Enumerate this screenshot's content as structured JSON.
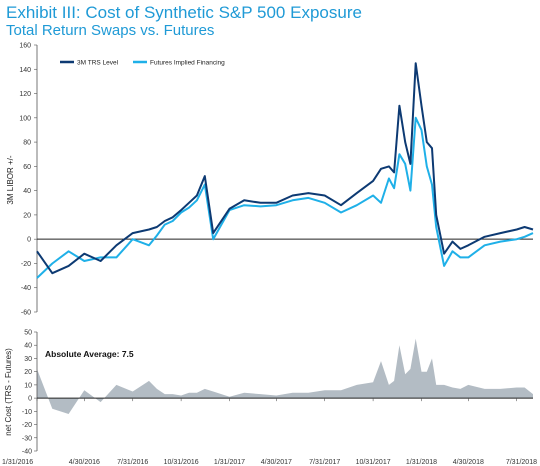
{
  "header": {
    "title": "Exhibit III:  Cost of Synthetic S&P 500 Exposure",
    "subtitle": "Total Return Swaps vs. Futures"
  },
  "colors": {
    "title": "#1f9ad6",
    "trs_series": "#0d3a73",
    "futures_series": "#1fb0e8",
    "spread_area": "#b3bcc4"
  },
  "chart_data": [
    {
      "type": "line",
      "ylabel": "3M LIBOR +/-",
      "ylim": [
        -60,
        160
      ],
      "yticks": [
        -60,
        -40,
        -20,
        0,
        20,
        40,
        60,
        80,
        100,
        120,
        140,
        160
      ],
      "grid": false,
      "legend_position": "top-left",
      "series": [
        {
          "name": "3M TRS Level",
          "color": "#0d3a73",
          "x": [
            "1/31/2016",
            "2/29/2016",
            "3/31/2016",
            "4/30/2016",
            "5/31/2016",
            "6/30/2016",
            "7/31/2016",
            "8/31/2016",
            "9/15/2016",
            "9/30/2016",
            "10/15/2016",
            "10/31/2016",
            "11/15/2016",
            "11/30/2016",
            "12/15/2016",
            "12/31/2016",
            "1/31/2017",
            "2/28/2017",
            "3/31/2017",
            "4/30/2017",
            "5/31/2017",
            "6/30/2017",
            "7/31/2017",
            "8/31/2017",
            "9/30/2017",
            "10/31/2017",
            "11/15/2017",
            "11/30/2017",
            "12/10/2017",
            "12/20/2017",
            "12/31/2017",
            "1/10/2018",
            "1/20/2018",
            "1/31/2018",
            "2/10/2018",
            "2/20/2018",
            "2/28/2018",
            "3/15/2018",
            "3/31/2018",
            "4/15/2018",
            "4/30/2018",
            "5/31/2018",
            "6/30/2018",
            "7/31/2018",
            "8/15/2018",
            "8/31/2018"
          ],
          "values": [
            -10,
            -28,
            -22,
            -12,
            -18,
            -5,
            5,
            8,
            10,
            15,
            18,
            24,
            30,
            36,
            52,
            5,
            25,
            32,
            30,
            30,
            36,
            38,
            36,
            28,
            38,
            48,
            58,
            60,
            55,
            110,
            80,
            62,
            145,
            110,
            80,
            75,
            20,
            -12,
            -2,
            -8,
            -5,
            2,
            5,
            8,
            10,
            8
          ]
        },
        {
          "name": "Futures Implied Financing",
          "color": "#1fb0e8",
          "x": [
            "1/31/2016",
            "2/29/2016",
            "3/31/2016",
            "4/30/2016",
            "5/31/2016",
            "6/30/2016",
            "7/31/2016",
            "8/31/2016",
            "9/15/2016",
            "9/30/2016",
            "10/15/2016",
            "10/31/2016",
            "11/15/2016",
            "11/30/2016",
            "12/15/2016",
            "12/31/2016",
            "1/31/2017",
            "2/28/2017",
            "3/31/2017",
            "4/30/2017",
            "5/31/2017",
            "6/30/2017",
            "7/31/2017",
            "8/31/2017",
            "9/30/2017",
            "10/31/2017",
            "11/15/2017",
            "11/30/2017",
            "12/10/2017",
            "12/20/2017",
            "12/31/2017",
            "1/10/2018",
            "1/20/2018",
            "1/31/2018",
            "2/10/2018",
            "2/20/2018",
            "2/28/2018",
            "3/15/2018",
            "3/31/2018",
            "4/15/2018",
            "4/30/2018",
            "5/31/2018",
            "6/30/2018",
            "7/31/2018",
            "8/15/2018",
            "8/31/2018"
          ],
          "values": [
            -32,
            -20,
            -10,
            -18,
            -15,
            -15,
            0,
            -5,
            3,
            12,
            15,
            22,
            26,
            32,
            45,
            0,
            24,
            28,
            27,
            28,
            32,
            34,
            30,
            22,
            28,
            36,
            30,
            50,
            42,
            70,
            62,
            40,
            100,
            90,
            60,
            45,
            10,
            -22,
            -10,
            -15,
            -15,
            -5,
            -2,
            0,
            2,
            5
          ]
        }
      ]
    },
    {
      "type": "area",
      "ylabel": "net Cost (TRS - Futures)",
      "ylim": [
        -40,
        50
      ],
      "yticks": [
        -40,
        -30,
        -20,
        -10,
        0,
        10,
        20,
        30,
        40,
        50
      ],
      "annotation": "Absolute Average: 7.5",
      "x": [
        "1/31/2016",
        "2/29/2016",
        "3/31/2016",
        "4/30/2016",
        "5/31/2016",
        "6/30/2016",
        "7/31/2016",
        "8/31/2016",
        "9/15/2016",
        "9/30/2016",
        "10/15/2016",
        "10/31/2016",
        "11/15/2016",
        "11/30/2016",
        "12/15/2016",
        "12/31/2016",
        "1/31/2017",
        "2/28/2017",
        "3/31/2017",
        "4/30/2017",
        "5/31/2017",
        "6/30/2017",
        "7/31/2017",
        "8/31/2017",
        "9/30/2017",
        "10/31/2017",
        "11/15/2017",
        "11/30/2017",
        "12/10/2017",
        "12/20/2017",
        "12/31/2017",
        "1/10/2018",
        "1/20/2018",
        "1/31/2018",
        "2/10/2018",
        "2/20/2018",
        "2/28/2018",
        "3/15/2018",
        "3/31/2018",
        "4/15/2018",
        "4/30/2018",
        "5/31/2018",
        "6/30/2018",
        "7/31/2018",
        "8/15/2018",
        "8/31/2018"
      ],
      "series": [
        {
          "color": "#b3bcc4",
          "values": [
            22,
            -8,
            -12,
            6,
            -3,
            10,
            5,
            13,
            7,
            3,
            3,
            2,
            4,
            4,
            7,
            5,
            1,
            4,
            3,
            2,
            4,
            4,
            6,
            6,
            10,
            12,
            28,
            10,
            13,
            40,
            18,
            22,
            45,
            20,
            20,
            30,
            10,
            10,
            8,
            7,
            10,
            7,
            7,
            8,
            8,
            3
          ]
        }
      ],
      "xticks": [
        "1/31/2016",
        "4/30/2016",
        "7/31/2016",
        "10/31/2016",
        "1/31/2017",
        "4/30/2017",
        "7/31/2017",
        "10/31/2017",
        "1/31/2018",
        "4/30/2018",
        "7/31/2018"
      ]
    }
  ]
}
